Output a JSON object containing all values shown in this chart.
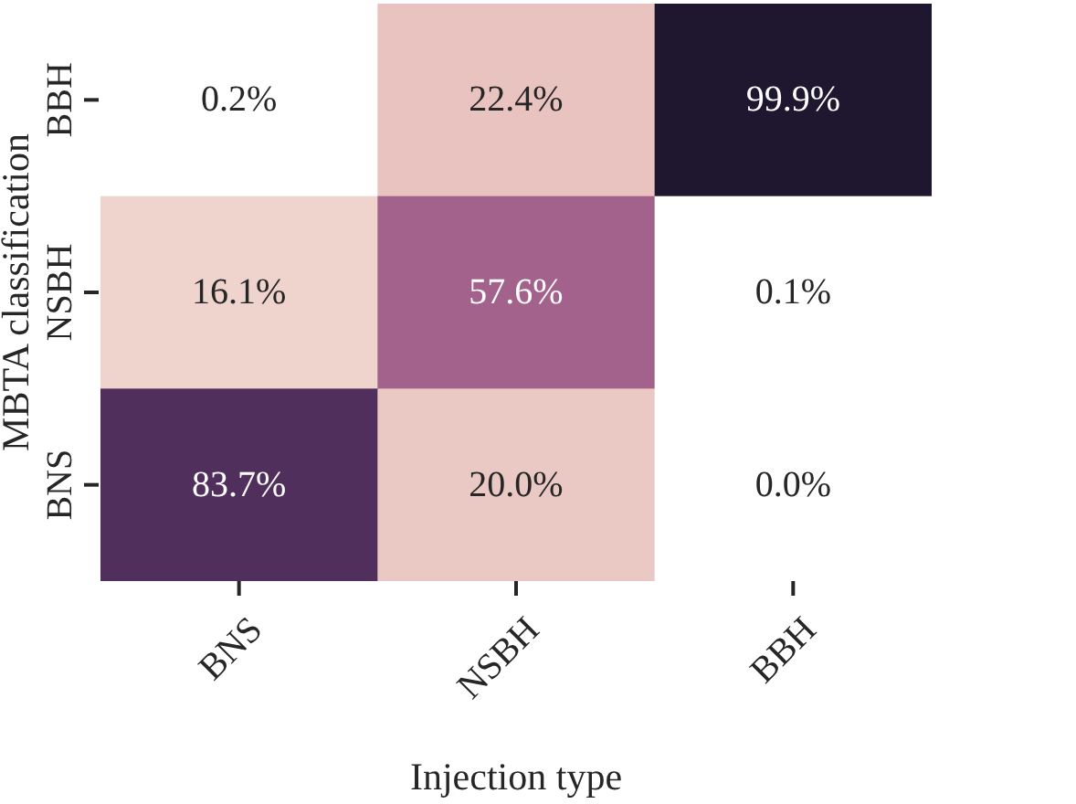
{
  "chart_data": {
    "type": "heatmap",
    "xlabel": "Injection type",
    "ylabel": "MBTA classification",
    "categories": [
      "BNS",
      "NSBH",
      "BBH"
    ],
    "y_categories": [
      "BBH",
      "NSBH",
      "BNS"
    ],
    "cells": [
      [
        0.2,
        22.4,
        99.9
      ],
      [
        16.1,
        57.6,
        0.1
      ],
      [
        83.7,
        20.0,
        0.0
      ]
    ],
    "cell_labels": [
      [
        "0.2%",
        "22.4%",
        "99.9%"
      ],
      [
        "16.1%",
        "57.6%",
        "0.1%"
      ],
      [
        "83.7%",
        "20.0%",
        "0.0%"
      ]
    ]
  }
}
